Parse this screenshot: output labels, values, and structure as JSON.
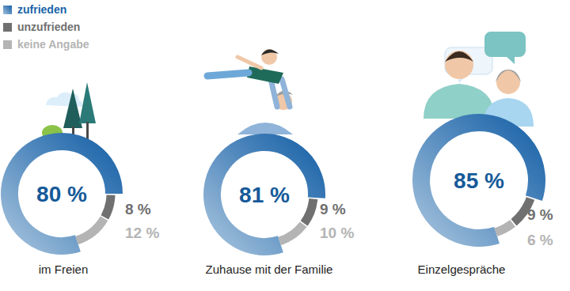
{
  "chart_data": {
    "type": "donut",
    "categories": [
      "im Freien",
      "Zuhause mit der Familie",
      "Einzelgespräche"
    ],
    "series": [
      {
        "name": "zufrieden",
        "color": "#1a63a8",
        "values": [
          80,
          81,
          85
        ],
        "value_labels": [
          "80 %",
          "81 %",
          "85 %"
        ]
      },
      {
        "name": "unzufrieden",
        "color": "#707070",
        "values": [
          8,
          9,
          9
        ],
        "value_labels": [
          "8 %",
          "9 %",
          "9 %"
        ]
      },
      {
        "name": "keine Angabe",
        "color": "#b4b4b4",
        "values": [
          12,
          10,
          6
        ],
        "value_labels": [
          "12 %",
          "10 %",
          "6 %"
        ]
      }
    ],
    "data_labels": true,
    "legend": "top-left"
  }
}
